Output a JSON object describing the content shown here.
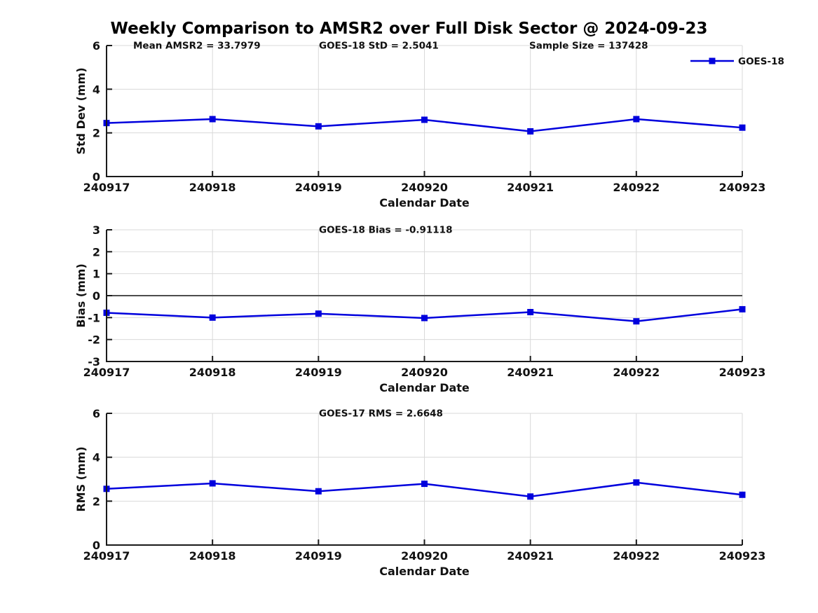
{
  "title": "Weekly Comparison to AMSR2 over Full Disk Sector @ 2024-09-23",
  "legend": {
    "label": "GOES-18"
  },
  "colors": {
    "line": "#0000dd",
    "marker": "#0000dd",
    "grid": "#d9d9d9",
    "frame": "#d9d9d9",
    "spine": "#1a1a1a",
    "zero_line": "#4d4d4d",
    "text": "#111111",
    "background": "#ffffff"
  },
  "chart_data": [
    {
      "type": "line",
      "name": "std-dev",
      "annotations": [
        "Mean AMSR2 = 33.7979",
        "GOES-18 StD = 2.5041",
        "Sample Size = 137428"
      ],
      "x": [
        "240917",
        "240918",
        "240919",
        "240920",
        "240921",
        "240922",
        "240923"
      ],
      "series": [
        {
          "name": "GOES-18",
          "values": [
            2.45,
            2.63,
            2.3,
            2.6,
            2.07,
            2.63,
            2.24
          ]
        }
      ],
      "xlabel": "Calendar Date",
      "ylabel": "Std Dev (mm)",
      "ylim": [
        0,
        6
      ],
      "yticks": [
        0,
        2,
        4,
        6
      ],
      "grid": true,
      "legend_position": "top-right",
      "zero_line": false
    },
    {
      "type": "line",
      "name": "bias",
      "annotations": [
        "GOES-18 Bias  = -0.91118"
      ],
      "x": [
        "240917",
        "240918",
        "240919",
        "240920",
        "240921",
        "240922",
        "240923"
      ],
      "series": [
        {
          "name": "GOES-18",
          "values": [
            -0.78,
            -1.0,
            -0.82,
            -1.02,
            -0.75,
            -1.17,
            -0.62
          ]
        }
      ],
      "xlabel": "Calendar Date",
      "ylabel": "Bias (mm)",
      "ylim": [
        -3,
        3
      ],
      "yticks": [
        -3,
        -2,
        -1,
        0,
        1,
        2,
        3
      ],
      "grid": true,
      "legend_position": "none",
      "zero_line": true
    },
    {
      "type": "line",
      "name": "rms",
      "annotations": [
        "GOES-17 RMS = 2.6648"
      ],
      "x": [
        "240917",
        "240918",
        "240919",
        "240920",
        "240921",
        "240922",
        "240923"
      ],
      "series": [
        {
          "name": "GOES-18",
          "values": [
            2.56,
            2.81,
            2.45,
            2.79,
            2.21,
            2.85,
            2.29
          ]
        }
      ],
      "xlabel": "Calendar Date",
      "ylabel": "RMS (mm)",
      "ylim": [
        0,
        6
      ],
      "yticks": [
        0,
        2,
        4,
        6
      ],
      "grid": true,
      "legend_position": "none",
      "zero_line": false
    }
  ]
}
